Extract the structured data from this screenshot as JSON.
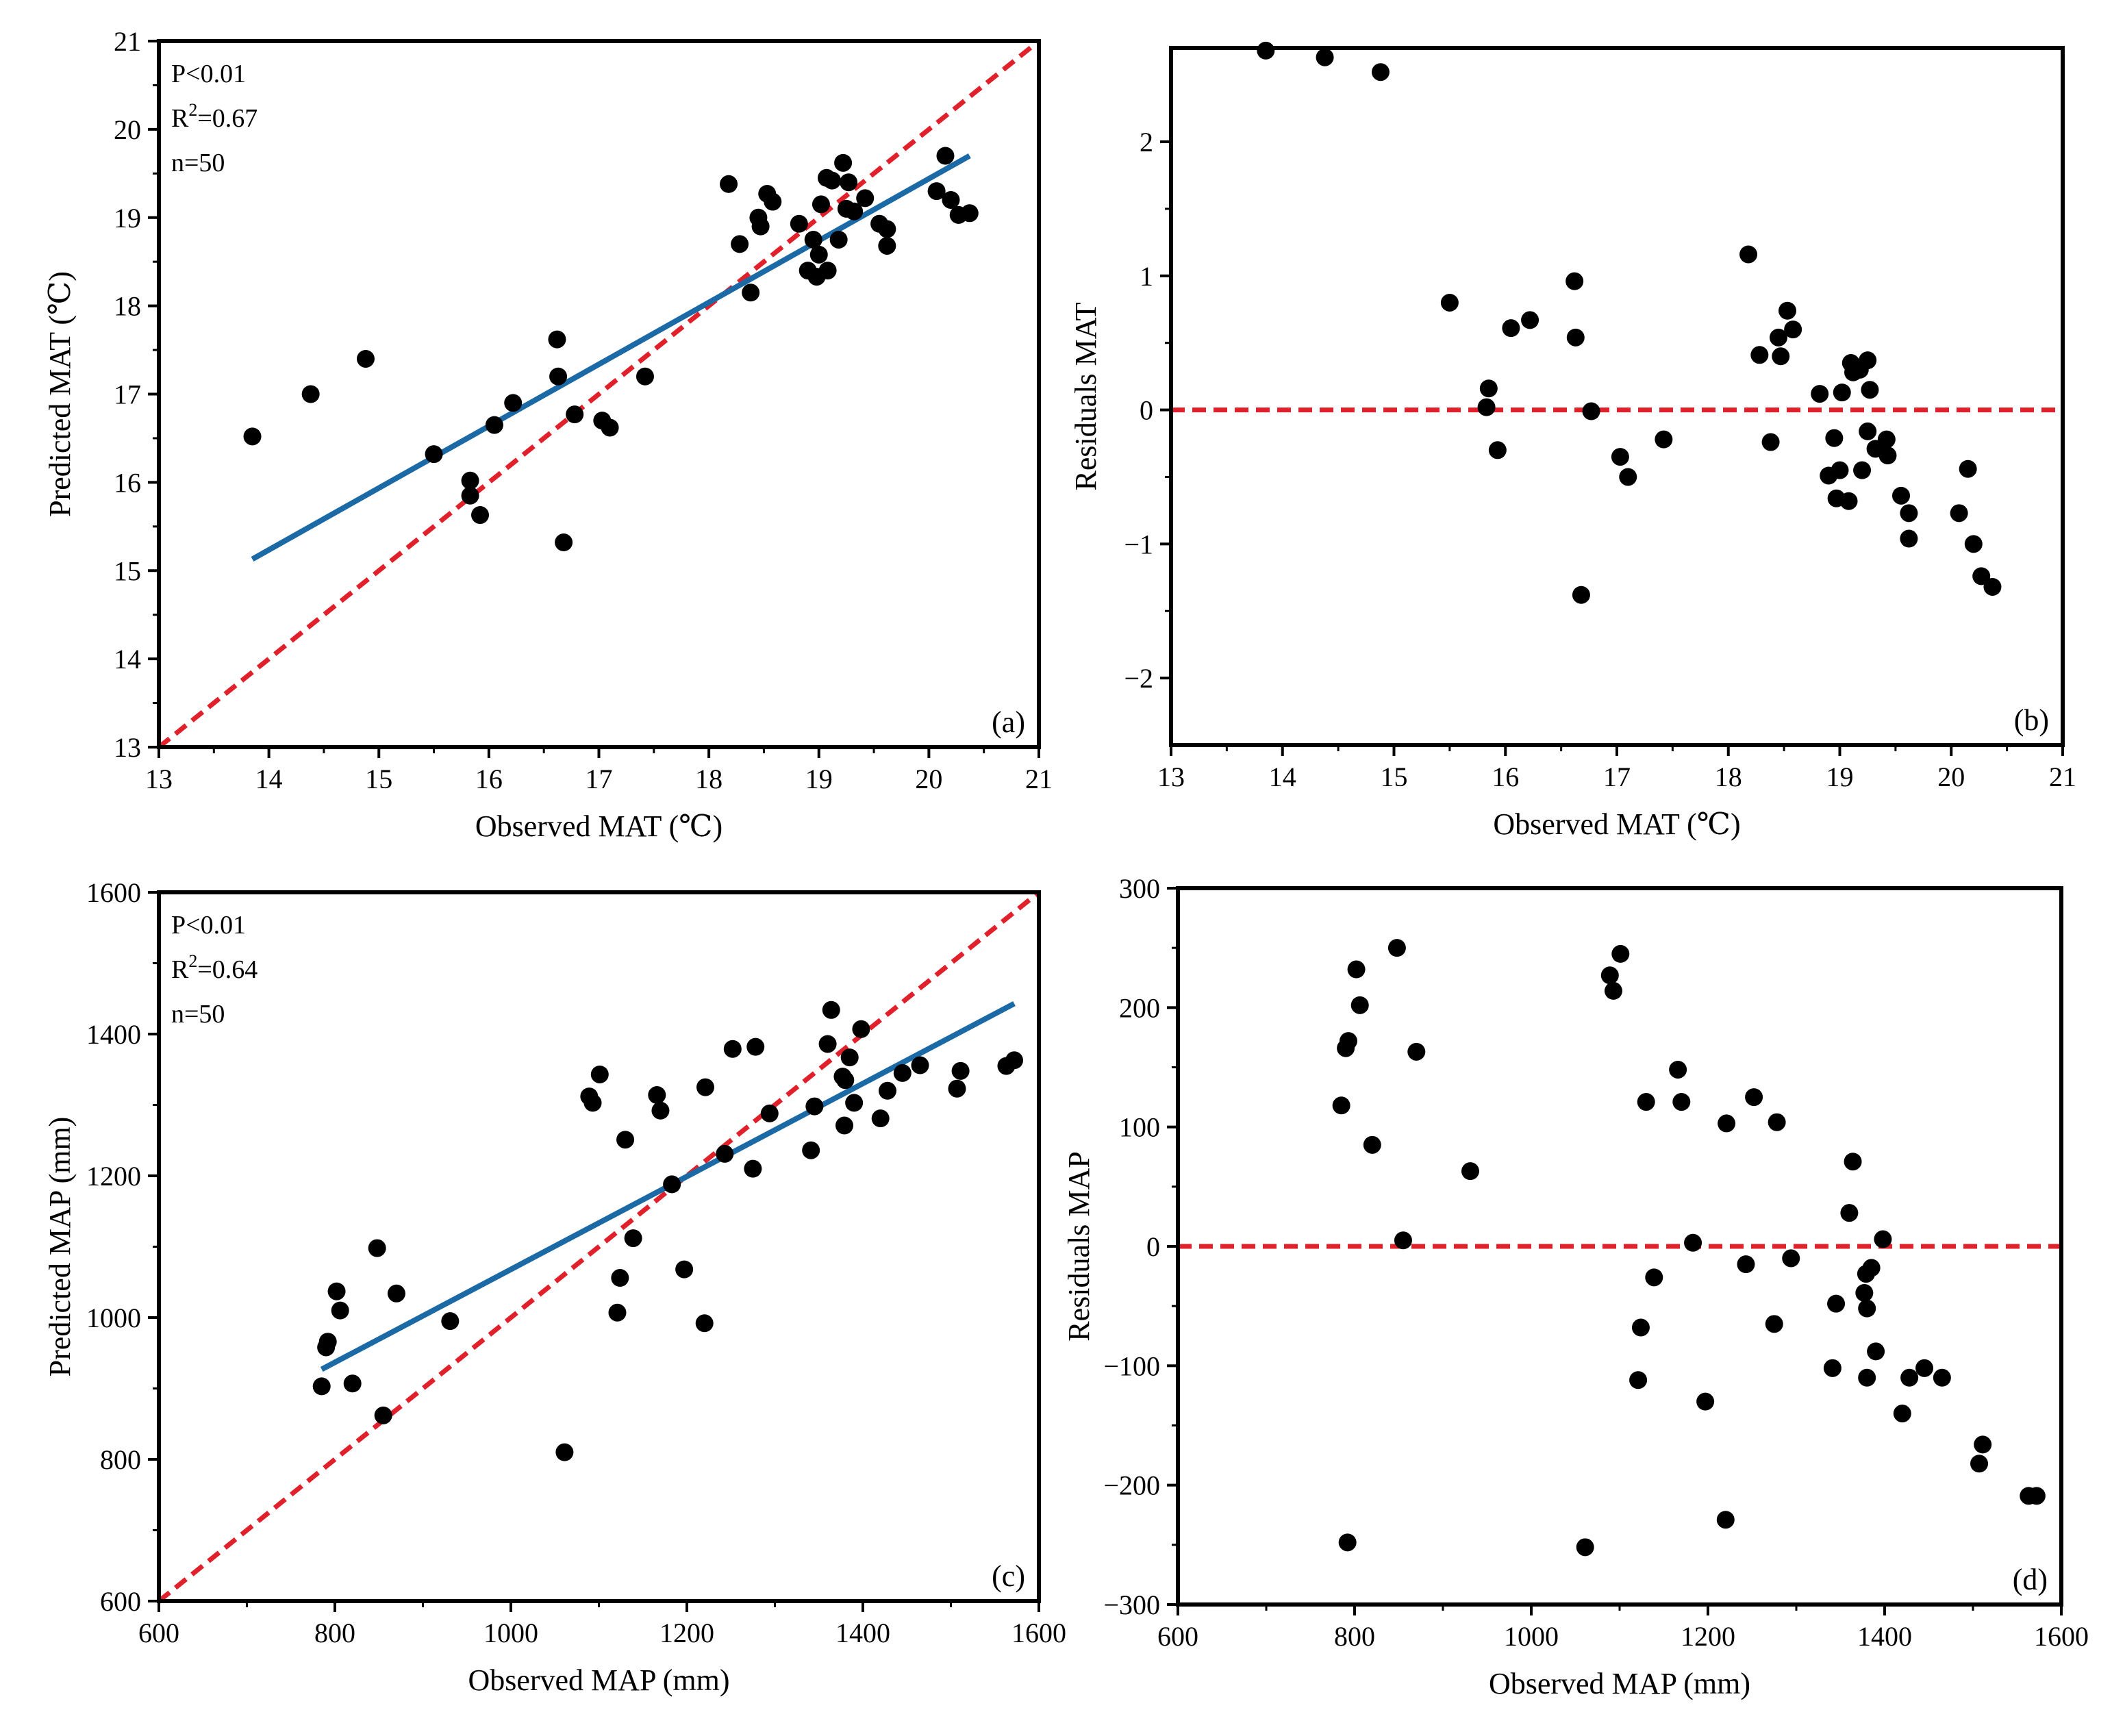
{
  "chart_data": [
    {
      "id": "a",
      "type": "scatter",
      "panel_label": "(a)",
      "xlabel": "Observed MAT (℃)",
      "ylabel": "Predicted MAT (℃)",
      "xlim": [
        13,
        21
      ],
      "ylim": [
        13,
        21
      ],
      "xticks": [
        "13",
        "14",
        "15",
        "16",
        "17",
        "18",
        "19",
        "20",
        "21"
      ],
      "yticks": [
        "13",
        "14",
        "15",
        "16",
        "17",
        "18",
        "19",
        "20",
        "21"
      ],
      "stats": {
        "p": "P<0.01",
        "r2_prefix": "R",
        "r2_sup": "2",
        "r2_value": "=0.67",
        "n": "n=50"
      },
      "points": [
        [
          13.85,
          16.52
        ],
        [
          14.38,
          17.0
        ],
        [
          14.88,
          17.4
        ],
        [
          15.5,
          16.32
        ],
        [
          15.83,
          16.02
        ],
        [
          15.83,
          15.85
        ],
        [
          15.92,
          15.63
        ],
        [
          16.05,
          16.65
        ],
        [
          16.22,
          16.9
        ],
        [
          16.62,
          17.62
        ],
        [
          16.63,
          17.2
        ],
        [
          16.68,
          15.32
        ],
        [
          16.78,
          16.77
        ],
        [
          17.03,
          16.7
        ],
        [
          17.1,
          16.62
        ],
        [
          17.42,
          17.2
        ],
        [
          18.18,
          19.38
        ],
        [
          18.28,
          18.7
        ],
        [
          18.38,
          18.15
        ],
        [
          18.45,
          19.0
        ],
        [
          18.47,
          18.9
        ],
        [
          18.53,
          19.27
        ],
        [
          18.58,
          19.18
        ],
        [
          18.82,
          18.93
        ],
        [
          18.9,
          18.4
        ],
        [
          18.95,
          18.75
        ],
        [
          18.98,
          18.33
        ],
        [
          19.0,
          18.58
        ],
        [
          19.02,
          19.15
        ],
        [
          19.07,
          19.45
        ],
        [
          19.08,
          18.4
        ],
        [
          19.12,
          19.42
        ],
        [
          19.18,
          18.75
        ],
        [
          19.22,
          19.62
        ],
        [
          19.25,
          19.1
        ],
        [
          19.27,
          19.4
        ],
        [
          19.32,
          19.07
        ],
        [
          19.42,
          19.22
        ],
        [
          19.55,
          18.93
        ],
        [
          19.62,
          18.68
        ],
        [
          19.62,
          18.87
        ],
        [
          20.07,
          19.3
        ],
        [
          20.15,
          19.7
        ],
        [
          20.2,
          19.2
        ],
        [
          20.27,
          19.03
        ],
        [
          20.37,
          19.05
        ]
      ],
      "fit_line": [
        [
          13.85,
          15.13
        ],
        [
          20.37,
          19.7
        ]
      ],
      "identity_line": [
        [
          13,
          13
        ],
        [
          21,
          21
        ]
      ]
    },
    {
      "id": "b",
      "type": "scatter",
      "panel_label": "(b)",
      "xlabel": "Observed MAT (℃)",
      "ylabel": "Residuals MAT",
      "xlim": [
        13,
        21
      ],
      "ylim": [
        -2.5,
        2.7
      ],
      "xticks": [
        "13",
        "14",
        "15",
        "16",
        "17",
        "18",
        "19",
        "20",
        "21"
      ],
      "yticks": [
        "−2",
        "−1",
        "0",
        "1",
        "2"
      ],
      "ytick_values": [
        -2,
        -1,
        0,
        1,
        2
      ],
      "points": [
        [
          13.85,
          2.68
        ],
        [
          14.38,
          2.63
        ],
        [
          14.88,
          2.52
        ],
        [
          15.5,
          0.8
        ],
        [
          15.83,
          0.02
        ],
        [
          15.85,
          0.16
        ],
        [
          15.93,
          -0.3
        ],
        [
          16.05,
          0.61
        ],
        [
          16.22,
          0.67
        ],
        [
          16.62,
          0.96
        ],
        [
          16.63,
          0.54
        ],
        [
          16.68,
          -1.38
        ],
        [
          16.77,
          -0.01
        ],
        [
          17.03,
          -0.35
        ],
        [
          17.1,
          -0.5
        ],
        [
          17.42,
          -0.22
        ],
        [
          18.18,
          1.16
        ],
        [
          18.28,
          0.41
        ],
        [
          18.38,
          -0.24
        ],
        [
          18.45,
          0.54
        ],
        [
          18.47,
          0.4
        ],
        [
          18.53,
          0.74
        ],
        [
          18.58,
          0.6
        ],
        [
          18.82,
          0.12
        ],
        [
          18.9,
          -0.49
        ],
        [
          18.95,
          -0.21
        ],
        [
          18.97,
          -0.66
        ],
        [
          19.0,
          -0.45
        ],
        [
          19.02,
          0.13
        ],
        [
          19.08,
          -0.68
        ],
        [
          19.1,
          0.35
        ],
        [
          19.12,
          0.28
        ],
        [
          19.18,
          0.3
        ],
        [
          19.2,
          -0.45
        ],
        [
          19.25,
          0.37
        ],
        [
          19.25,
          -0.16
        ],
        [
          19.27,
          0.15
        ],
        [
          19.32,
          -0.29
        ],
        [
          19.42,
          -0.22
        ],
        [
          19.43,
          -0.34
        ],
        [
          19.55,
          -0.64
        ],
        [
          19.62,
          -0.77
        ],
        [
          19.62,
          -0.96
        ],
        [
          20.07,
          -0.77
        ],
        [
          20.15,
          -0.44
        ],
        [
          20.2,
          -1.0
        ],
        [
          20.27,
          -1.24
        ],
        [
          20.37,
          -1.32
        ]
      ],
      "zero_line": [
        [
          13,
          0
        ],
        [
          21,
          0
        ]
      ]
    },
    {
      "id": "c",
      "type": "scatter",
      "panel_label": "(c)",
      "xlabel": "Observed MAP (mm)",
      "ylabel": "Predicted MAP (mm)",
      "xlim": [
        600,
        1600
      ],
      "ylim": [
        600,
        1600
      ],
      "xticks": [
        "600",
        "800",
        "1000",
        "1200",
        "1400",
        "1600"
      ],
      "yticks": [
        "600",
        "800",
        "1000",
        "1200",
        "1400",
        "1600"
      ],
      "stats": {
        "p": "P<0.01",
        "r2_prefix": "R",
        "r2_sup": "2",
        "r2_value": "=0.64",
        "n": "n=50"
      },
      "points": [
        [
          785,
          903
        ],
        [
          790,
          958
        ],
        [
          792,
          966
        ],
        [
          802,
          1037
        ],
        [
          806,
          1010
        ],
        [
          820,
          907
        ],
        [
          848,
          1098
        ],
        [
          855,
          862
        ],
        [
          870,
          1034
        ],
        [
          931,
          995
        ],
        [
          1061,
          810
        ],
        [
          1089,
          1312
        ],
        [
          1093,
          1303
        ],
        [
          1101,
          1343
        ],
        [
          1121,
          1007
        ],
        [
          1124,
          1056
        ],
        [
          1130,
          1251
        ],
        [
          1139,
          1112
        ],
        [
          1166,
          1314
        ],
        [
          1170,
          1292
        ],
        [
          1183,
          1188
        ],
        [
          1197,
          1068
        ],
        [
          1220,
          992
        ],
        [
          1221,
          1325
        ],
        [
          1243,
          1231
        ],
        [
          1252,
          1379
        ],
        [
          1275,
          1210
        ],
        [
          1278,
          1382
        ],
        [
          1294,
          1288
        ],
        [
          1341,
          1236
        ],
        [
          1345,
          1298
        ],
        [
          1360,
          1386
        ],
        [
          1364,
          1434
        ],
        [
          1377,
          1340
        ],
        [
          1379,
          1271
        ],
        [
          1380,
          1335
        ],
        [
          1385,
          1367
        ],
        [
          1390,
          1303
        ],
        [
          1398,
          1407
        ],
        [
          1420,
          1281
        ],
        [
          1428,
          1320
        ],
        [
          1445,
          1345
        ],
        [
          1465,
          1356
        ],
        [
          1507,
          1323
        ],
        [
          1511,
          1348
        ],
        [
          1563,
          1355
        ],
        [
          1572,
          1363
        ]
      ],
      "fit_line": [
        [
          785,
          927
        ],
        [
          1572,
          1443
        ]
      ],
      "identity_line": [
        [
          600,
          600
        ],
        [
          1600,
          1600
        ]
      ]
    },
    {
      "id": "d",
      "type": "scatter",
      "panel_label": "(d)",
      "xlabel": "Observed MAP (mm)",
      "ylabel": "Residuals MAP",
      "xlim": [
        600,
        1600
      ],
      "ylim": [
        -300,
        300
      ],
      "xticks": [
        "600",
        "800",
        "1000",
        "1200",
        "1400",
        "1600"
      ],
      "yticks": [
        "−300",
        "−200",
        "−100",
        "0",
        "100",
        "200",
        "300"
      ],
      "ytick_values": [
        -300,
        -200,
        -100,
        0,
        100,
        200,
        300
      ],
      "points": [
        [
          785,
          118
        ],
        [
          790,
          166
        ],
        [
          792,
          -248
        ],
        [
          793,
          172
        ],
        [
          802,
          232
        ],
        [
          806,
          202
        ],
        [
          820,
          85
        ],
        [
          848,
          250
        ],
        [
          855,
          5
        ],
        [
          870,
          163
        ],
        [
          931,
          63
        ],
        [
          1061,
          -252
        ],
        [
          1089,
          227
        ],
        [
          1093,
          214
        ],
        [
          1101,
          245
        ],
        [
          1121,
          -112
        ],
        [
          1124,
          -68
        ],
        [
          1130,
          121
        ],
        [
          1139,
          -26
        ],
        [
          1166,
          148
        ],
        [
          1170,
          121
        ],
        [
          1183,
          3
        ],
        [
          1197,
          -130
        ],
        [
          1220,
          -229
        ],
        [
          1221,
          103
        ],
        [
          1243,
          -15
        ],
        [
          1252,
          125
        ],
        [
          1275,
          -65
        ],
        [
          1278,
          104
        ],
        [
          1294,
          -10
        ],
        [
          1341,
          -102
        ],
        [
          1345,
          -48
        ],
        [
          1360,
          28
        ],
        [
          1364,
          71
        ],
        [
          1377,
          -39
        ],
        [
          1379,
          -23
        ],
        [
          1380,
          -52
        ],
        [
          1380,
          -110
        ],
        [
          1385,
          -18
        ],
        [
          1390,
          -88
        ],
        [
          1398,
          6
        ],
        [
          1420,
          -140
        ],
        [
          1428,
          -110
        ],
        [
          1445,
          -102
        ],
        [
          1465,
          -110
        ],
        [
          1507,
          -182
        ],
        [
          1511,
          -166
        ],
        [
          1563,
          -209
        ],
        [
          1572,
          -209
        ]
      ],
      "zero_line": [
        [
          600,
          0
        ],
        [
          1600,
          0
        ]
      ]
    }
  ]
}
